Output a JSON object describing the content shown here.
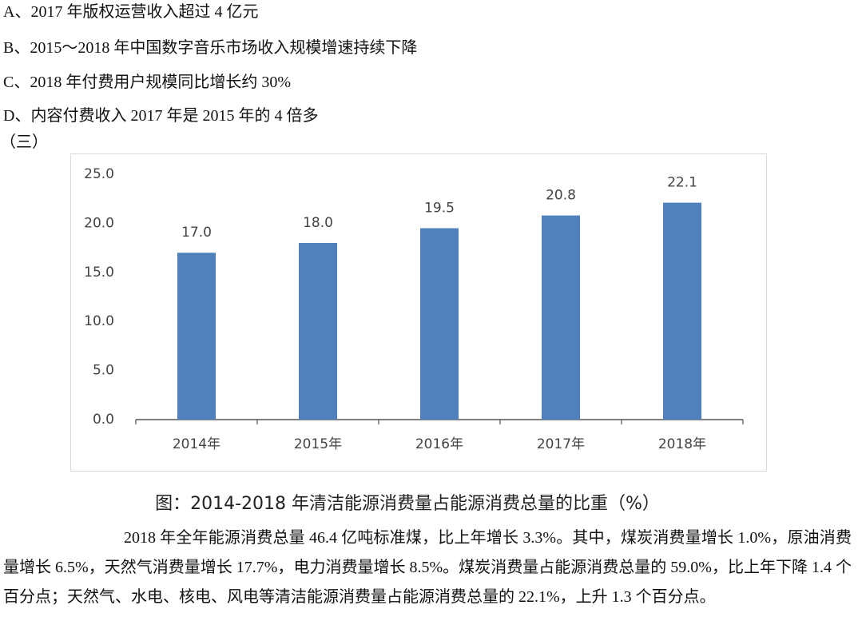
{
  "options": [
    "A、2017 年版权运营收入超过 4 亿元",
    "B、2015～2018 年中国数字音乐市场收入规模增速持续下降",
    "C、2018 年付费用户规模同比增长约 30%",
    "D、内容付费收入 2017 年是 2015 年的 4 倍多"
  ],
  "section_label": "（三）",
  "chart_data": {
    "type": "bar",
    "categories": [
      "2014年",
      "2015年",
      "2016年",
      "2017年",
      "2018年"
    ],
    "values": [
      17.0,
      18.0,
      19.5,
      20.8,
      22.1
    ],
    "value_labels": [
      "17.0",
      "18.0",
      "19.5",
      "20.8",
      "22.1"
    ],
    "color": "#4f81bd",
    "ylim": [
      0,
      25
    ],
    "yticks": [
      {
        "value": 0,
        "label": "0.0"
      },
      {
        "value": 5,
        "label": "5.0"
      },
      {
        "value": 10,
        "label": "10.0"
      },
      {
        "value": 15,
        "label": "15.0"
      },
      {
        "value": 20,
        "label": "20.0"
      },
      {
        "value": 25,
        "label": "25.0"
      }
    ],
    "grid": false
  },
  "caption": "图：2014-2018 年清洁能源消费量占能源消费总量的比重（%）",
  "paragraph": "2018 年全年能源消费总量 46.4 亿吨标准煤，比上年增长 3.3%。其中，煤炭消费量增长 1.0%，原油消费量增长 6.5%，天然气消费量增长 17.7%，电力消费量增长 8.5%。煤炭消费量占能源消费总量的 59.0%，比上年下降 1.4 个百分点；天然气、水电、核电、风电等清洁能源消费量占能源消费总量的 22.1%，上升 1.3 个百分点。"
}
